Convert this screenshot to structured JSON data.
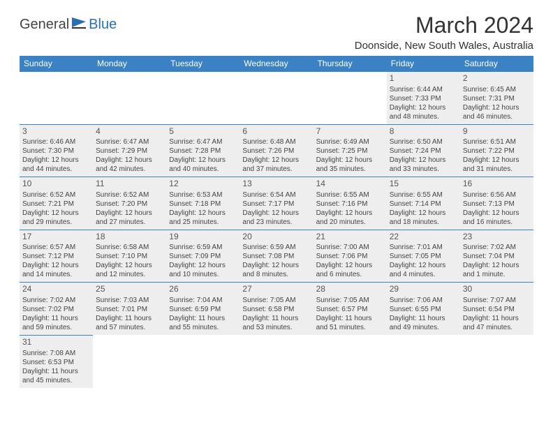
{
  "logo": {
    "text1": "General",
    "text2": "Blue"
  },
  "title": "March 2024",
  "location": "Doonside, New South Wales, Australia",
  "colors": {
    "header_bg": "#3b82c4",
    "header_fg": "#ffffff",
    "border": "#3b82c4",
    "shaded_cell": "#eeeeee",
    "text": "#444444",
    "logo_blue": "#2a6fb5"
  },
  "dayHeaders": [
    "Sunday",
    "Monday",
    "Tuesday",
    "Wednesday",
    "Thursday",
    "Friday",
    "Saturday"
  ],
  "weeks": [
    [
      null,
      null,
      null,
      null,
      null,
      {
        "n": "1",
        "sr": "6:44 AM",
        "ss": "7:33 PM",
        "dl": "12 hours and 48 minutes."
      },
      {
        "n": "2",
        "sr": "6:45 AM",
        "ss": "7:31 PM",
        "dl": "12 hours and 46 minutes."
      }
    ],
    [
      {
        "n": "3",
        "sr": "6:46 AM",
        "ss": "7:30 PM",
        "dl": "12 hours and 44 minutes."
      },
      {
        "n": "4",
        "sr": "6:47 AM",
        "ss": "7:29 PM",
        "dl": "12 hours and 42 minutes."
      },
      {
        "n": "5",
        "sr": "6:47 AM",
        "ss": "7:28 PM",
        "dl": "12 hours and 40 minutes."
      },
      {
        "n": "6",
        "sr": "6:48 AM",
        "ss": "7:26 PM",
        "dl": "12 hours and 37 minutes."
      },
      {
        "n": "7",
        "sr": "6:49 AM",
        "ss": "7:25 PM",
        "dl": "12 hours and 35 minutes."
      },
      {
        "n": "8",
        "sr": "6:50 AM",
        "ss": "7:24 PM",
        "dl": "12 hours and 33 minutes."
      },
      {
        "n": "9",
        "sr": "6:51 AM",
        "ss": "7:22 PM",
        "dl": "12 hours and 31 minutes."
      }
    ],
    [
      {
        "n": "10",
        "sr": "6:52 AM",
        "ss": "7:21 PM",
        "dl": "12 hours and 29 minutes."
      },
      {
        "n": "11",
        "sr": "6:52 AM",
        "ss": "7:20 PM",
        "dl": "12 hours and 27 minutes."
      },
      {
        "n": "12",
        "sr": "6:53 AM",
        "ss": "7:18 PM",
        "dl": "12 hours and 25 minutes."
      },
      {
        "n": "13",
        "sr": "6:54 AM",
        "ss": "7:17 PM",
        "dl": "12 hours and 23 minutes."
      },
      {
        "n": "14",
        "sr": "6:55 AM",
        "ss": "7:16 PM",
        "dl": "12 hours and 20 minutes."
      },
      {
        "n": "15",
        "sr": "6:55 AM",
        "ss": "7:14 PM",
        "dl": "12 hours and 18 minutes."
      },
      {
        "n": "16",
        "sr": "6:56 AM",
        "ss": "7:13 PM",
        "dl": "12 hours and 16 minutes."
      }
    ],
    [
      {
        "n": "17",
        "sr": "6:57 AM",
        "ss": "7:12 PM",
        "dl": "12 hours and 14 minutes."
      },
      {
        "n": "18",
        "sr": "6:58 AM",
        "ss": "7:10 PM",
        "dl": "12 hours and 12 minutes."
      },
      {
        "n": "19",
        "sr": "6:59 AM",
        "ss": "7:09 PM",
        "dl": "12 hours and 10 minutes."
      },
      {
        "n": "20",
        "sr": "6:59 AM",
        "ss": "7:08 PM",
        "dl": "12 hours and 8 minutes."
      },
      {
        "n": "21",
        "sr": "7:00 AM",
        "ss": "7:06 PM",
        "dl": "12 hours and 6 minutes."
      },
      {
        "n": "22",
        "sr": "7:01 AM",
        "ss": "7:05 PM",
        "dl": "12 hours and 4 minutes."
      },
      {
        "n": "23",
        "sr": "7:02 AM",
        "ss": "7:04 PM",
        "dl": "12 hours and 1 minute."
      }
    ],
    [
      {
        "n": "24",
        "sr": "7:02 AM",
        "ss": "7:02 PM",
        "dl": "11 hours and 59 minutes."
      },
      {
        "n": "25",
        "sr": "7:03 AM",
        "ss": "7:01 PM",
        "dl": "11 hours and 57 minutes."
      },
      {
        "n": "26",
        "sr": "7:04 AM",
        "ss": "6:59 PM",
        "dl": "11 hours and 55 minutes."
      },
      {
        "n": "27",
        "sr": "7:05 AM",
        "ss": "6:58 PM",
        "dl": "11 hours and 53 minutes."
      },
      {
        "n": "28",
        "sr": "7:05 AM",
        "ss": "6:57 PM",
        "dl": "11 hours and 51 minutes."
      },
      {
        "n": "29",
        "sr": "7:06 AM",
        "ss": "6:55 PM",
        "dl": "11 hours and 49 minutes."
      },
      {
        "n": "30",
        "sr": "7:07 AM",
        "ss": "6:54 PM",
        "dl": "11 hours and 47 minutes."
      }
    ],
    [
      {
        "n": "31",
        "sr": "7:08 AM",
        "ss": "6:53 PM",
        "dl": "11 hours and 45 minutes."
      },
      null,
      null,
      null,
      null,
      null,
      null
    ]
  ],
  "labels": {
    "sunrise": "Sunrise:",
    "sunset": "Sunset:",
    "daylight": "Daylight:"
  }
}
